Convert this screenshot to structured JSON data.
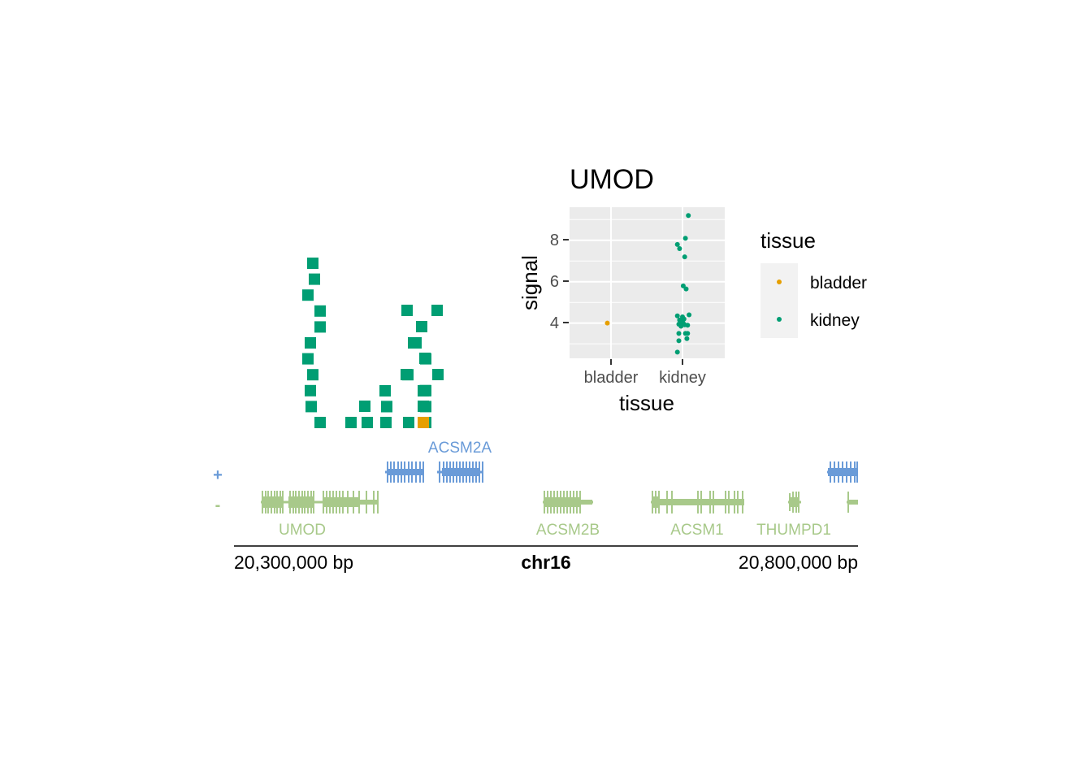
{
  "chart_data": [
    {
      "type": "scatter",
      "title": "",
      "description_role": "lollipop-style stacked markers above genome track",
      "colors": {
        "kidney": "#009E73",
        "bladder": "#E69F00"
      },
      "stacks": [
        {
          "column": 1,
          "kidney_count": 11,
          "bladder_count": 0
        },
        {
          "column": 2,
          "kidney_count": 1,
          "bladder_count": 0
        },
        {
          "column": 3,
          "kidney_count": 2,
          "bladder_count": 0
        },
        {
          "column": 4,
          "kidney_count": 3,
          "bladder_count": 0
        },
        {
          "column": 5,
          "kidney_count": 6,
          "bladder_count": 0
        },
        {
          "column": 6,
          "kidney_count": 7,
          "bladder_count": 1
        },
        {
          "column": 7,
          "kidney_count": 4,
          "bladder_count": 0
        }
      ]
    },
    {
      "type": "scatter",
      "title": "UMOD",
      "xlabel": "tissue",
      "ylabel": "signal",
      "categories": [
        "bladder",
        "kidney"
      ],
      "y_ticks": [
        4,
        6,
        8
      ],
      "ylim": [
        2.3,
        9.6
      ],
      "grid": true,
      "legend_title": "tissue",
      "legend_position": "right",
      "series": [
        {
          "name": "bladder",
          "color": "#E69F00",
          "points": [
            [
              -0.05,
              4.0
            ]
          ]
        },
        {
          "name": "kidney",
          "color": "#009E73",
          "points": [
            [
              0.08,
              9.2
            ],
            [
              0.04,
              8.1
            ],
            [
              -0.07,
              7.8
            ],
            [
              -0.04,
              7.6
            ],
            [
              0.03,
              7.2
            ],
            [
              0.01,
              5.8
            ],
            [
              0.05,
              5.65
            ],
            [
              0.09,
              4.4
            ],
            [
              -0.07,
              4.35
            ],
            [
              0.0,
              4.3
            ],
            [
              0.02,
              4.2
            ],
            [
              -0.04,
              4.15
            ],
            [
              -0.02,
              4.05
            ],
            [
              0.01,
              4.0
            ],
            [
              -0.05,
              3.95
            ],
            [
              0.03,
              3.92
            ],
            [
              0.07,
              3.9
            ],
            [
              -0.02,
              3.85
            ],
            [
              -0.05,
              3.5
            ],
            [
              0.04,
              3.5
            ],
            [
              0.07,
              3.5
            ],
            [
              0.06,
              3.25
            ],
            [
              -0.05,
              3.15
            ],
            [
              -0.07,
              2.6
            ]
          ]
        }
      ]
    },
    {
      "type": "genome-track",
      "chromosome": "chr16",
      "range_labels": [
        "20,300,000 bp",
        "20,800,000 bp"
      ],
      "strand_labels": {
        "plus": "+",
        "minus": "-"
      },
      "colors": {
        "plus": "#6A9BD8",
        "minus": "#A8C98A"
      },
      "genes": [
        {
          "name": "ACSM2A",
          "strand": "+",
          "label_shown": true
        },
        {
          "name": "ACSM2A-b",
          "strand": "+",
          "label_shown": false
        },
        {
          "name": "THUMPD1-r",
          "strand": "+",
          "label_shown": false
        },
        {
          "name": "UMOD",
          "strand": "-",
          "label_shown": true
        },
        {
          "name": "ACSM2B",
          "strand": "-",
          "label_shown": true
        },
        {
          "name": "ACSM1",
          "strand": "-",
          "label_shown": true
        },
        {
          "name": "THUMPD1",
          "strand": "-",
          "label_shown": true
        }
      ]
    }
  ],
  "legend": {
    "title": "tissue",
    "items": [
      {
        "label": "bladder",
        "color": "#E69F00"
      },
      {
        "label": "kidney",
        "color": "#009E73"
      }
    ]
  },
  "text": {
    "inset_title": "UMOD",
    "inset_ylabel": "signal",
    "inset_xlabel": "tissue",
    "inset_xtick_bladder": "bladder",
    "inset_xtick_kidney": "kidney",
    "inset_ytick_4": "4",
    "inset_ytick_6": "6",
    "inset_ytick_8": "8",
    "legend_title": "tissue",
    "legend_bladder": "bladder",
    "legend_kidney": "kidney",
    "strand_plus": "+",
    "strand_minus": "-",
    "gene_acsm2a": "ACSM2A",
    "gene_umod": "UMOD",
    "gene_acsm2b": "ACSM2B",
    "gene_acsm1": "ACSM1",
    "gene_thumpd1": "THUMPD1",
    "axis_left": "20,300,000 bp",
    "axis_chrom": "chr16",
    "axis_right": "20,800,000 bp"
  }
}
